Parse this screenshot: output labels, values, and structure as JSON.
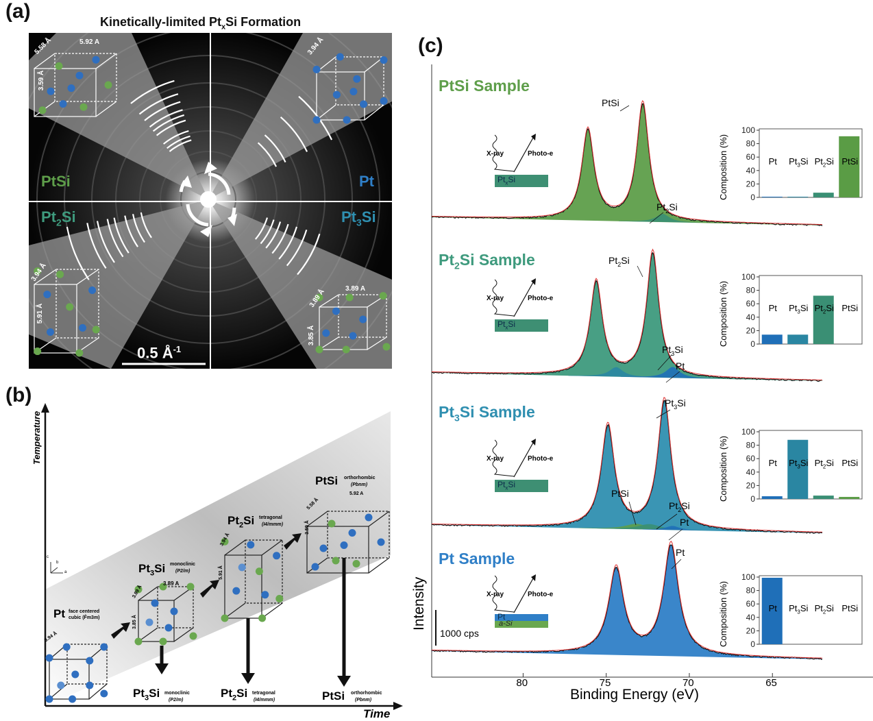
{
  "panel_a": {
    "label": "(a)",
    "title_pre": "Kinetically-limited Pt",
    "title_sub": "x",
    "title_post": "Si Formation",
    "quadrants": [
      {
        "name": "PtSi",
        "base": "PtSi",
        "sub": "",
        "color": "#5e9e4a"
      },
      {
        "name": "Pt",
        "base": "Pt",
        "sub": "",
        "color": "#2f7fc7"
      },
      {
        "name": "Pt2Si",
        "base": "Pt",
        "sub": "2",
        "post": "Si",
        "color": "#3e9a7d"
      },
      {
        "name": "Pt3Si",
        "base": "Pt",
        "sub": "3",
        "post": "Si",
        "color": "#2f8fb0"
      }
    ],
    "lattice_labels": [
      "5.58 Å",
      "5.92 A",
      "3.59 Å",
      "3.94 Å",
      "3.94 Å",
      "5.91 Å",
      "3.89 A",
      "3.89 Å",
      "3.85 Å"
    ],
    "scale_bar": "0.5 Å",
    "scale_bar_sup": "-1"
  },
  "panel_b": {
    "label": "(b)",
    "y_axis": "Temperature",
    "x_axis": "Time",
    "axes_small": [
      "c",
      "b",
      "a"
    ],
    "stages": [
      {
        "base": "Pt",
        "sub": "",
        "post": "",
        "desc": "face centered cubic (F̄m3m)",
        "dims": [
          "3.94 Å"
        ]
      },
      {
        "base": "Pt",
        "sub": "3",
        "post": "Si",
        "desc": "monoclinic",
        "group": "(P2/m)",
        "dims": [
          "3.89 A",
          "3.89 Å",
          "3.85 Å"
        ]
      },
      {
        "base": "Pt",
        "sub": "2",
        "post": "Si",
        "desc": "tetragonal",
        "group": "(I4/mmm)",
        "dims": [
          "3.94 Å",
          "5.91 Å"
        ]
      },
      {
        "base": "PtSi",
        "sub": "",
        "post": "",
        "desc": "orthorhombic",
        "group": "(Pbnm)",
        "dims": [
          "5.92 A",
          "5.58 Å",
          "3.59 Å"
        ]
      }
    ],
    "bottom_products": [
      {
        "base": "Pt",
        "sub": "3",
        "post": "Si",
        "desc": "monoclinic",
        "group": "(P2/m)"
      },
      {
        "base": "Pt",
        "sub": "2",
        "post": "Si",
        "desc": "tetragonal",
        "group": "(I4/mmm)"
      },
      {
        "base": "PtSi",
        "sub": "",
        "post": "",
        "desc": "orthorhombic",
        "group": "(Pbnm)"
      }
    ]
  },
  "panel_c": {
    "label": "(c)",
    "y_axis": "Intensity",
    "x_axis": "Binding Energy (eV)",
    "x_ticks": [
      80,
      75,
      70,
      65
    ],
    "scale_label": "1000 cps",
    "inset_ylabel": "Composition (%)",
    "inset_yticks": [
      0,
      20,
      40,
      60,
      80,
      100
    ],
    "xray_label": "X-ray",
    "photo_label": "Photo-e",
    "samples": [
      {
        "title_base": "PtSi",
        "title_sub": "",
        "title_post": " Sample",
        "color": "#5e9e4a",
        "layer_label_base": "Pt",
        "layer_label_sub": "x",
        "layer_label_post": "Si",
        "peaks": [
          {
            "label": "PtSi",
            "sub": ""
          },
          {
            "label": "Pt",
            "sub": "2",
            "post": "Si"
          }
        ],
        "composition": {
          "Pt": 1,
          "Pt3Si": 1,
          "Pt2Si": 7,
          "PtSi": 91
        }
      },
      {
        "title_base": "Pt",
        "title_sub": "2",
        "title_post": "Si Sample",
        "color": "#3e9a7d",
        "layer_label_base": "Pt",
        "layer_label_sub": "x",
        "layer_label_post": "Si",
        "peaks": [
          {
            "label": "Pt",
            "sub": "2",
            "post": "Si"
          },
          {
            "label": "Pt",
            "sub": "3",
            "post": "Si"
          },
          {
            "label": "Pt",
            "sub": "",
            "post": ""
          }
        ],
        "composition": {
          "Pt": 14,
          "Pt3Si": 14,
          "Pt2Si": 72,
          "PtSi": 0
        }
      },
      {
        "title_base": "Pt",
        "title_sub": "3",
        "title_post": "Si Sample",
        "color": "#2f8fb0",
        "layer_label_base": "Pt",
        "layer_label_sub": "x",
        "layer_label_post": "Si",
        "peaks": [
          {
            "label": "Pt",
            "sub": "3",
            "post": "Si"
          },
          {
            "label": "PtSi",
            "sub": "",
            "post": ""
          },
          {
            "label": "Pt",
            "sub": "2",
            "post": "Si"
          },
          {
            "label": "Pt",
            "sub": "",
            "post": ""
          }
        ],
        "composition": {
          "Pt": 4,
          "Pt3Si": 88,
          "Pt2Si": 5,
          "PtSi": 3
        }
      },
      {
        "title_base": "Pt",
        "title_sub": "",
        "title_post": " Sample",
        "color": "#2f7fc7",
        "layer_label_base": "Pt",
        "layer_label_sub": "",
        "layer_label_post": "",
        "layer2_label": "a-Si",
        "peaks": [
          {
            "label": "Pt",
            "sub": "",
            "post": ""
          }
        ],
        "composition": {
          "Pt": 99,
          "Pt3Si": 0,
          "Pt2Si": 0,
          "PtSi": 0
        }
      }
    ],
    "bar_labels": [
      {
        "base": "Pt",
        "sub": ""
      },
      {
        "base": "Pt",
        "sub": "3",
        "post": "Si"
      },
      {
        "base": "Pt",
        "sub": "2",
        "post": "Si"
      },
      {
        "base": "PtSi",
        "sub": ""
      }
    ],
    "bar_colors": {
      "Pt": "#1f6fb8",
      "Pt3Si": "#2a86a2",
      "Pt2Si": "#3a8f74",
      "PtSi": "#5a9c45"
    }
  },
  "chart_data": [
    {
      "type": "bar",
      "title": "",
      "categories": [
        "Pt",
        "Pt3Si",
        "Pt2Si",
        "PtSi"
      ],
      "values": [
        1,
        1,
        7,
        91
      ],
      "ylabel": "Composition (%)",
      "ylim": [
        0,
        100
      ]
    },
    {
      "type": "bar",
      "title": "",
      "categories": [
        "Pt",
        "Pt3Si",
        "Pt2Si",
        "PtSi"
      ],
      "values": [
        14,
        14,
        72,
        0
      ],
      "ylabel": "Composition (%)",
      "ylim": [
        0,
        100
      ]
    },
    {
      "type": "bar",
      "title": "",
      "categories": [
        "Pt",
        "Pt3Si",
        "Pt2Si",
        "PtSi"
      ],
      "values": [
        4,
        88,
        5,
        3
      ],
      "ylabel": "Composition (%)",
      "ylim": [
        0,
        100
      ]
    },
    {
      "type": "bar",
      "title": "",
      "categories": [
        "Pt",
        "Pt3Si",
        "Pt2Si",
        "PtSi"
      ],
      "values": [
        99,
        0,
        0,
        0
      ],
      "ylabel": "Composition (%)",
      "ylim": [
        0,
        100
      ]
    },
    {
      "type": "line",
      "title": "",
      "xlabel": "Binding Energy (eV)",
      "ylabel": "Intensity",
      "xlim": [
        85,
        62
      ],
      "x_ticks": [
        80,
        75,
        70,
        65
      ],
      "series": [
        {
          "name": "PtSi Sample",
          "peaks_ev": [
            76.1,
            72.8
          ]
        },
        {
          "name": "Pt2Si Sample",
          "peaks_ev": [
            75.6,
            72.2
          ]
        },
        {
          "name": "Pt3Si Sample",
          "peaks_ev": [
            74.9,
            71.5
          ]
        },
        {
          "name": "Pt Sample",
          "peaks_ev": [
            74.4,
            71.1
          ]
        }
      ]
    }
  ]
}
